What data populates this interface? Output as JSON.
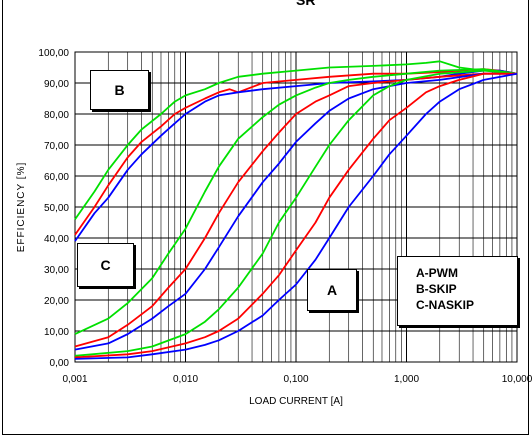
{
  "title_fragment": "SR",
  "labels": {
    "B": "B",
    "C": "C",
    "A": "A"
  },
  "legend": [
    "A-PWM",
    "B-SKIP",
    "C-NASKIP"
  ],
  "chart_data": {
    "type": "line",
    "xlabel": "LOAD CURRENT [A]",
    "ylabel": "EFFICIENCY [%]",
    "xscale": "log",
    "xlim": [
      0.001,
      10
    ],
    "ylim": [
      0,
      100
    ],
    "xticks": [
      0.001,
      0.01,
      0.1,
      1,
      10
    ],
    "xtick_labels": [
      "0,001",
      "0,010",
      "0,100",
      "1,000",
      "10,000"
    ],
    "yticks": [
      0,
      10,
      20,
      30,
      40,
      50,
      60,
      70,
      80,
      90,
      100
    ],
    "ytick_labels": [
      "0,00",
      "10,00",
      "20,00",
      "30,00",
      "40,00",
      "50,00",
      "60,00",
      "70,00",
      "80,00",
      "90,00",
      "100,00"
    ],
    "grid": true,
    "colors": {
      "green": "#00e000",
      "red": "#ff0000",
      "blue": "#0000ff"
    },
    "series": [
      {
        "color": "green",
        "x": [
          0.001,
          0.0015,
          0.002,
          0.003,
          0.004,
          0.006,
          0.008,
          0.01,
          0.015,
          0.02,
          0.03,
          0.05,
          0.1,
          0.2,
          0.5,
          1,
          1.5,
          2,
          3,
          5,
          7,
          10
        ],
        "y": [
          46,
          55,
          62,
          70,
          75,
          80,
          84,
          86,
          88,
          90,
          92,
          93,
          94,
          95,
          95.5,
          96,
          96.5,
          97,
          95,
          94,
          94,
          93
        ]
      },
      {
        "color": "red",
        "x": [
          0.001,
          0.0015,
          0.002,
          0.003,
          0.004,
          0.006,
          0.008,
          0.01,
          0.015,
          0.02,
          0.025,
          0.03,
          0.05,
          0.1,
          0.2,
          0.5,
          1,
          2,
          3,
          5,
          7,
          10
        ],
        "y": [
          41,
          50,
          57,
          66,
          71,
          76,
          80,
          82,
          85,
          87,
          88,
          87,
          90,
          91,
          92,
          93,
          93,
          93.5,
          94,
          94.5,
          94,
          93
        ]
      },
      {
        "color": "blue",
        "x": [
          0.001,
          0.0015,
          0.002,
          0.003,
          0.004,
          0.006,
          0.008,
          0.01,
          0.015,
          0.02,
          0.03,
          0.05,
          0.1,
          0.2,
          0.5,
          1,
          2,
          3,
          5,
          7,
          10
        ],
        "y": [
          39,
          48,
          53,
          62,
          67,
          73,
          77,
          80,
          84,
          86,
          87,
          88,
          89,
          90,
          90.5,
          91,
          92,
          93,
          94,
          94,
          93
        ]
      },
      {
        "color": "green",
        "x": [
          0.001,
          0.002,
          0.003,
          0.005,
          0.007,
          0.01,
          0.015,
          0.02,
          0.03,
          0.05,
          0.07,
          0.1,
          0.15,
          0.2,
          0.3,
          0.5,
          1,
          2,
          5,
          10
        ],
        "y": [
          9,
          14,
          19,
          27,
          35,
          43,
          55,
          63,
          72,
          79,
          83,
          86,
          88.5,
          90,
          91,
          92,
          93,
          94,
          94.5,
          93
        ]
      },
      {
        "color": "red",
        "x": [
          0.001,
          0.002,
          0.003,
          0.005,
          0.007,
          0.01,
          0.015,
          0.02,
          0.03,
          0.05,
          0.07,
          0.1,
          0.15,
          0.2,
          0.3,
          0.5,
          1,
          2,
          5,
          10
        ],
        "y": [
          5,
          8,
          12,
          18,
          24,
          30,
          40,
          48,
          58,
          68,
          74,
          80,
          84,
          86,
          89,
          90,
          91,
          92,
          93,
          93
        ]
      },
      {
        "color": "blue",
        "x": [
          0.001,
          0.002,
          0.003,
          0.005,
          0.007,
          0.01,
          0.015,
          0.02,
          0.03,
          0.05,
          0.07,
          0.1,
          0.15,
          0.2,
          0.3,
          0.5,
          1,
          2,
          5,
          10
        ],
        "y": [
          4,
          6,
          9,
          14,
          18,
          22,
          30,
          37,
          47,
          58,
          64,
          71,
          77,
          81,
          85,
          88,
          90,
          91,
          93,
          93
        ]
      },
      {
        "color": "green",
        "x": [
          0.001,
          0.003,
          0.005,
          0.01,
          0.015,
          0.02,
          0.03,
          0.05,
          0.07,
          0.1,
          0.15,
          0.2,
          0.3,
          0.5,
          0.7,
          1,
          2,
          5,
          10
        ],
        "y": [
          2,
          3.5,
          5,
          9,
          13,
          17,
          24,
          35,
          45,
          53,
          63,
          70,
          78,
          86,
          89,
          91,
          93,
          94,
          93
        ]
      },
      {
        "color": "red",
        "x": [
          0.001,
          0.003,
          0.005,
          0.01,
          0.015,
          0.02,
          0.03,
          0.05,
          0.07,
          0.1,
          0.15,
          0.2,
          0.3,
          0.5,
          0.7,
          1,
          1.5,
          2,
          3,
          5,
          10
        ],
        "y": [
          1.5,
          2.5,
          3.5,
          6,
          8,
          10,
          14,
          22,
          28,
          36,
          45,
          53,
          62,
          72,
          78,
          82,
          87,
          89,
          91,
          93,
          93
        ]
      },
      {
        "color": "blue",
        "x": [
          0.001,
          0.003,
          0.005,
          0.01,
          0.015,
          0.02,
          0.03,
          0.05,
          0.07,
          0.1,
          0.15,
          0.2,
          0.3,
          0.5,
          0.7,
          1,
          1.5,
          2,
          3,
          5,
          10
        ],
        "y": [
          1,
          1.5,
          2.5,
          4,
          5.5,
          7,
          10,
          15,
          20,
          25,
          33,
          40,
          50,
          60,
          67,
          73,
          80,
          84,
          88,
          91,
          93
        ]
      }
    ]
  }
}
